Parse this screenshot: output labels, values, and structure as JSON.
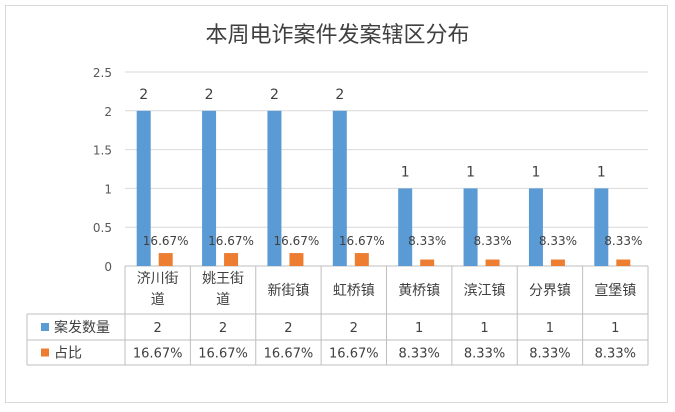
{
  "chart_data": {
    "type": "bar",
    "title": "本周电诈案件发案辖区分布",
    "categories": [
      [
        "济川街",
        "道"
      ],
      [
        "姚王街",
        "道"
      ],
      [
        "新街镇"
      ],
      [
        "虹桥镇"
      ],
      [
        "黄桥镇"
      ],
      [
        "滨江镇"
      ],
      [
        "分界镇"
      ],
      [
        "宣堡镇"
      ]
    ],
    "series": [
      {
        "name": "案发数量",
        "color": "#5b9bd5",
        "values": [
          2,
          2,
          2,
          2,
          1,
          1,
          1,
          1
        ],
        "labels": [
          "2",
          "2",
          "2",
          "2",
          "1",
          "1",
          "1",
          "1"
        ]
      },
      {
        "name": "占比",
        "color": "#ed7d31",
        "values": [
          0.1667,
          0.1667,
          0.1667,
          0.1667,
          0.0833,
          0.0833,
          0.0833,
          0.0833
        ],
        "labels": [
          "16.67%",
          "16.67%",
          "16.67%",
          "16.67%",
          "8.33%",
          "8.33%",
          "8.33%",
          "8.33%"
        ]
      }
    ],
    "y_ticks": [
      "0",
      "0.5",
      "1",
      "1.5",
      "2",
      "2.5"
    ],
    "ylim": [
      0,
      2.5
    ],
    "grid": true,
    "legend": "data-table",
    "axis_color": "#bfbfbf",
    "grid_color": "#d9d9d9"
  }
}
